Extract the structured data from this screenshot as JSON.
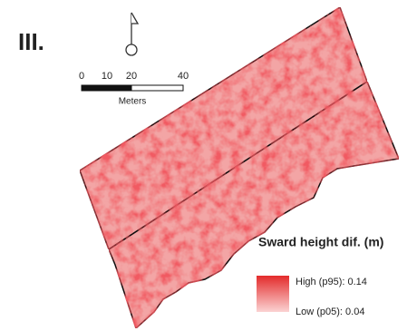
{
  "panel_label": "III.",
  "scale_bar": {
    "ticks": [
      "0",
      "10",
      "20",
      "40"
    ],
    "unit": "Meters"
  },
  "legend": {
    "title": "Sward height dif. (m)",
    "high": "High (p95): 0.14",
    "low": "Low (p05): 0.04"
  }
}
